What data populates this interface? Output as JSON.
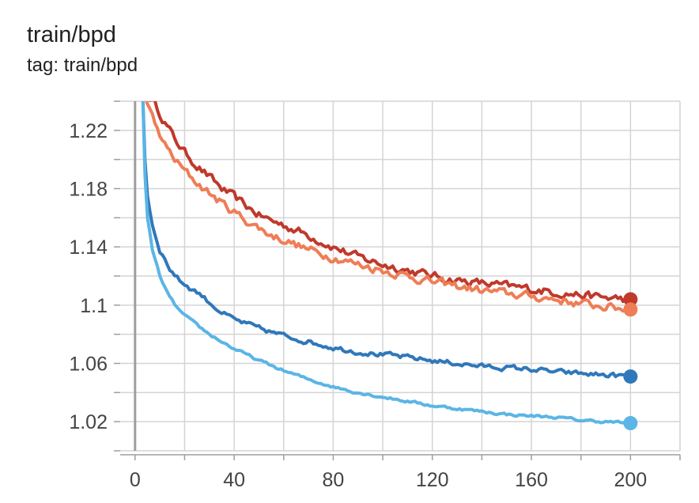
{
  "header": {
    "title": "train/bpd",
    "subtitle": "tag: train/bpd"
  },
  "chart_data": {
    "type": "line",
    "title": "train/bpd",
    "subtitle": "tag: train/bpd",
    "xlabel": "",
    "ylabel": "",
    "xlim": [
      -6,
      220
    ],
    "ylim": [
      1.0,
      1.24
    ],
    "x_ticks": [
      0,
      40,
      80,
      120,
      160,
      200
    ],
    "y_ticks": [
      1.02,
      1.06,
      1.1,
      1.14,
      1.18,
      1.22
    ],
    "y_tick_labels": [
      "1.02",
      "1.06",
      "1.1",
      "1.14",
      "1.18",
      "1.22"
    ],
    "grid": true,
    "legend": "none",
    "series": [
      {
        "color": "#c0392b",
        "noise": 0.0025,
        "x": [
          3,
          5,
          8,
          12,
          16,
          20,
          25,
          30,
          35,
          40,
          45,
          50,
          55,
          60,
          70,
          80,
          90,
          100,
          110,
          120,
          130,
          140,
          150,
          160,
          170,
          180,
          190,
          200
        ],
        "y": [
          1.26,
          1.245,
          1.238,
          1.226,
          1.214,
          1.205,
          1.196,
          1.188,
          1.18,
          1.174,
          1.168,
          1.162,
          1.158,
          1.155,
          1.148,
          1.14,
          1.133,
          1.128,
          1.124,
          1.12,
          1.117,
          1.115,
          1.113,
          1.111,
          1.109,
          1.107,
          1.105,
          1.104
        ]
      },
      {
        "color": "#ef7d56",
        "noise": 0.0025,
        "x": [
          3,
          5,
          8,
          12,
          16,
          20,
          25,
          30,
          35,
          40,
          45,
          50,
          55,
          60,
          70,
          80,
          90,
          100,
          110,
          120,
          130,
          140,
          150,
          160,
          170,
          180,
          190,
          200
        ],
        "y": [
          1.25,
          1.238,
          1.224,
          1.21,
          1.2,
          1.192,
          1.184,
          1.177,
          1.17,
          1.164,
          1.158,
          1.153,
          1.148,
          1.145,
          1.138,
          1.133,
          1.128,
          1.124,
          1.12,
          1.116,
          1.113,
          1.11,
          1.108,
          1.106,
          1.104,
          1.101,
          1.099,
          1.097
        ]
      },
      {
        "color": "#2f78ba",
        "noise": 0.0015,
        "x": [
          3,
          4,
          5,
          7,
          10,
          14,
          18,
          22,
          26,
          30,
          35,
          40,
          50,
          60,
          70,
          80,
          90,
          100,
          110,
          120,
          130,
          140,
          150,
          160,
          170,
          180,
          190,
          200
        ],
        "y": [
          1.25,
          1.2,
          1.175,
          1.155,
          1.138,
          1.125,
          1.117,
          1.112,
          1.108,
          1.102,
          1.095,
          1.09,
          1.084,
          1.079,
          1.075,
          1.071,
          1.068,
          1.066,
          1.064,
          1.062,
          1.06,
          1.058,
          1.057,
          1.056,
          1.054,
          1.053,
          1.052,
          1.051
        ]
      },
      {
        "color": "#5bb5e6",
        "noise": 0.0008,
        "x": [
          3,
          4,
          5,
          7,
          10,
          14,
          18,
          22,
          26,
          30,
          35,
          40,
          50,
          60,
          70,
          80,
          90,
          100,
          110,
          120,
          130,
          140,
          150,
          160,
          170,
          180,
          190,
          200
        ],
        "y": [
          1.25,
          1.19,
          1.16,
          1.138,
          1.12,
          1.105,
          1.096,
          1.09,
          1.085,
          1.08,
          1.075,
          1.07,
          1.062,
          1.055,
          1.049,
          1.044,
          1.04,
          1.037,
          1.034,
          1.031,
          1.029,
          1.027,
          1.025,
          1.024,
          1.023,
          1.021,
          1.02,
          1.019
        ]
      }
    ]
  }
}
